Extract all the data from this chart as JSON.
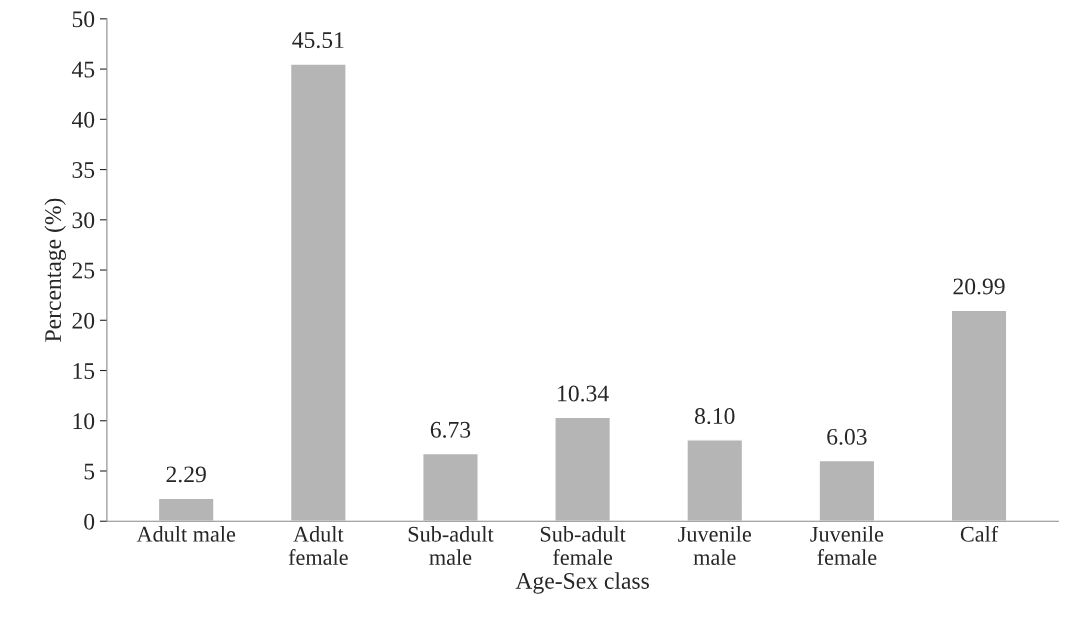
{
  "chart_data": {
    "type": "bar",
    "xlabel": "Age-Sex class",
    "ylabel": "Percentage (%)",
    "categories": [
      "Adult male",
      "Adult\nfemale",
      "Sub-adult\nmale",
      "Sub-adult\nfemale",
      "Juvenile\nmale",
      "Juvenile\nfemale",
      "Calf"
    ],
    "values": [
      2.29,
      45.51,
      6.73,
      10.34,
      8.1,
      6.03,
      20.99
    ],
    "value_labels": [
      "2.29",
      "45.51",
      "6.73",
      "10.34",
      "8.10",
      "6.03",
      "20.99"
    ],
    "color": "#b5b5b5",
    "ylim": [
      0,
      50
    ],
    "yticks": [
      0,
      5,
      10,
      15,
      20,
      25,
      30,
      35,
      40,
      45,
      50
    ],
    "grid": false
  }
}
